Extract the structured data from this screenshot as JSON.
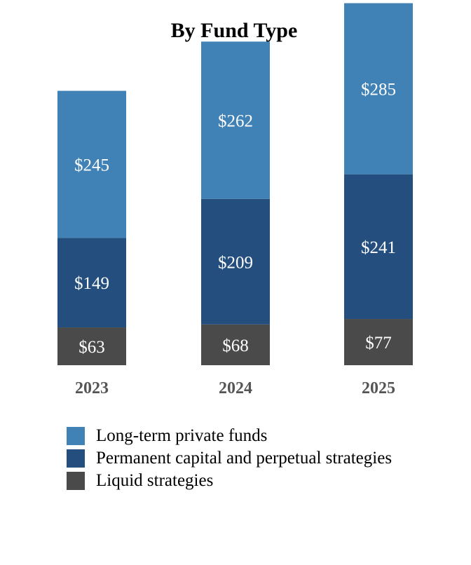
{
  "chart_data": {
    "type": "bar",
    "stacked": true,
    "title": "By Fund Type",
    "categories": [
      "2023",
      "2024",
      "2025"
    ],
    "series": [
      {
        "name": "Liquid strategies",
        "values": [
          63,
          68,
          77
        ],
        "labels": [
          "$63",
          "$68",
          "$77"
        ],
        "color": "#4a4a4a"
      },
      {
        "name": "Permanent capital and perpetual strategies",
        "values": [
          149,
          209,
          241
        ],
        "labels": [
          "$149",
          "$209",
          "$241"
        ],
        "color": "#234e7e"
      },
      {
        "name": "Long-term private funds",
        "values": [
          245,
          262,
          285
        ],
        "labels": [
          "$245",
          "$262",
          "$285"
        ],
        "color": "#4081b6"
      }
    ],
    "legend": [
      {
        "name": "Long-term private funds",
        "color": "#4081b6"
      },
      {
        "name": "Permanent capital and perpetual strategies",
        "color": "#234e7e"
      },
      {
        "name": "Liquid strategies",
        "color": "#4a4a4a"
      }
    ],
    "legend_position": "bottom-left",
    "grid": false
  }
}
